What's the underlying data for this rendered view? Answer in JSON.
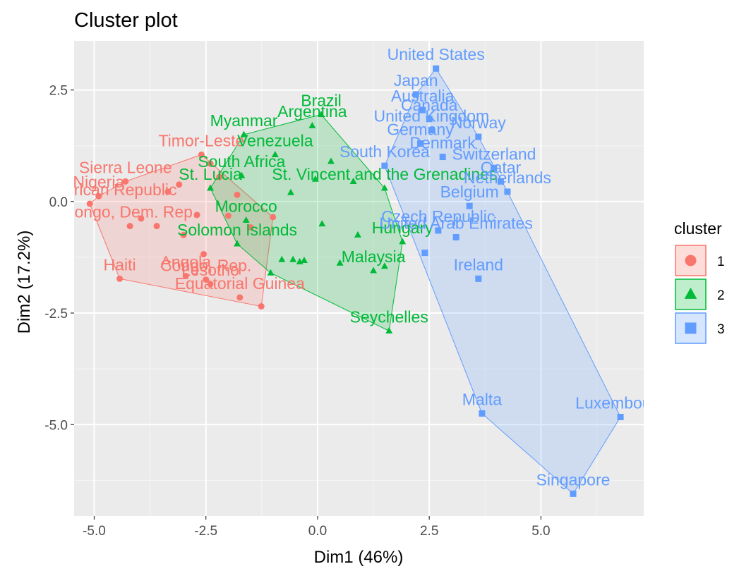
{
  "chart_data": {
    "type": "scatter",
    "title": "Cluster plot",
    "xlabel": "Dim1 (46%)",
    "ylabel": "Dim2 (17.2%)",
    "xlim": [
      -5.45,
      7.3
    ],
    "ylim": [
      -7.05,
      3.6
    ],
    "xticks": [
      -5.0,
      -2.5,
      0.0,
      2.5,
      5.0
    ],
    "xtick_labels": [
      "-5.0",
      "-2.5",
      "0.0",
      "2.5",
      "5.0"
    ],
    "yticks": [
      2.5,
      0.0,
      -2.5,
      -5.0
    ],
    "ytick_labels": [
      "2.5",
      "0.0",
      "-2.5",
      "-5.0"
    ],
    "grid": true,
    "legend": {
      "title": "cluster",
      "position": "right",
      "entries": [
        {
          "label": "1",
          "color": "#F8766D",
          "shape": "circle"
        },
        {
          "label": "2",
          "color": "#00BA38",
          "shape": "triangle"
        },
        {
          "label": "3",
          "color": "#619CFF",
          "shape": "square"
        }
      ]
    },
    "series": [
      {
        "cluster": "1",
        "color": "#F8766D",
        "shape": "circle",
        "points": [
          {
            "label": "Haiti",
            "x": -4.43,
            "y": -1.73
          },
          {
            "label": "Angola",
            "x": -2.95,
            "y": -1.67
          },
          {
            "label": "Lesotho",
            "x": -2.4,
            "y": -1.85
          },
          {
            "label": "Congo, Rep.",
            "x": -2.5,
            "y": -1.75
          },
          {
            "label": "Equatorial Guinea",
            "x": -1.74,
            "y": -2.15
          },
          {
            "label": "",
            "x": -1.26,
            "y": -2.35
          },
          {
            "label": "Nigeria",
            "x": -4.9,
            "y": 0.12
          },
          {
            "label": "Central African Republic",
            "x": -5.1,
            "y": -0.05
          },
          {
            "label": "Congo, Dem. Rep.",
            "x": -4.2,
            "y": -0.55
          },
          {
            "label": "Sierra Leone",
            "x": -4.3,
            "y": 0.45
          },
          {
            "label": "Timor-Leste",
            "x": -2.6,
            "y": 1.05
          },
          {
            "label": "",
            "x": -3.95,
            "y": -0.38
          },
          {
            "label": "",
            "x": -3.6,
            "y": -0.55
          },
          {
            "label": "",
            "x": -3.0,
            "y": -0.75
          },
          {
            "label": "",
            "x": -2.55,
            "y": -1.18
          },
          {
            "label": "",
            "x": -3.35,
            "y": 0.22
          },
          {
            "label": "",
            "x": -3.1,
            "y": 0.38
          },
          {
            "label": "",
            "x": -2.2,
            "y": 0.55
          },
          {
            "label": "",
            "x": -2.0,
            "y": -0.32
          },
          {
            "label": "",
            "x": -1.5,
            "y": -0.58
          },
          {
            "label": "",
            "x": -1.0,
            "y": -0.35
          },
          {
            "label": "",
            "x": -2.7,
            "y": -0.3
          },
          {
            "label": "",
            "x": -1.8,
            "y": 0.15
          },
          {
            "label": "",
            "x": -2.4,
            "y": 0.85
          }
        ]
      },
      {
        "cluster": "2",
        "color": "#00BA38",
        "shape": "triangle",
        "points": [
          {
            "label": "Brazil",
            "x": 0.08,
            "y": 1.95
          },
          {
            "label": "Myanmar",
            "x": -1.65,
            "y": 1.5
          },
          {
            "label": "Argentina",
            "x": -0.12,
            "y": 1.7
          },
          {
            "label": "Venezuela",
            "x": -0.95,
            "y": 1.05
          },
          {
            "label": "South Africa",
            "x": -1.7,
            "y": 0.58
          },
          {
            "label": "St. Lucia",
            "x": -2.4,
            "y": 0.3
          },
          {
            "label": "Morocco",
            "x": -1.6,
            "y": -0.42
          },
          {
            "label": "Solomon Islands",
            "x": -1.8,
            "y": -0.95
          },
          {
            "label": "Malaysia",
            "x": 1.25,
            "y": -1.55
          },
          {
            "label": "Seychelles",
            "x": 1.6,
            "y": -2.9
          },
          {
            "label": "Hungary",
            "x": 1.9,
            "y": -0.9
          },
          {
            "label": "St. Vincent and the Grenadines",
            "x": 1.5,
            "y": 0.3
          },
          {
            "label": "",
            "x": -0.8,
            "y": -1.3
          },
          {
            "label": "",
            "x": -0.55,
            "y": -1.3
          },
          {
            "label": "",
            "x": -0.4,
            "y": -1.35
          },
          {
            "label": "",
            "x": -0.3,
            "y": -1.32
          },
          {
            "label": "",
            "x": 0.5,
            "y": -1.38
          },
          {
            "label": "",
            "x": 1.5,
            "y": -1.45
          },
          {
            "label": "",
            "x": -1.05,
            "y": -1.6
          },
          {
            "label": "",
            "x": -0.05,
            "y": 0.5
          },
          {
            "label": "",
            "x": 0.3,
            "y": 0.9
          },
          {
            "label": "",
            "x": 0.8,
            "y": 0.45
          },
          {
            "label": "",
            "x": -0.6,
            "y": 0.2
          },
          {
            "label": "",
            "x": 0.1,
            "y": -0.5
          },
          {
            "label": "",
            "x": 0.9,
            "y": -0.75
          }
        ]
      },
      {
        "cluster": "3",
        "color": "#619CFF",
        "shape": "square",
        "points": [
          {
            "label": "United States",
            "x": 2.65,
            "y": 2.98
          },
          {
            "label": "Japan",
            "x": 2.2,
            "y": 2.4
          },
          {
            "label": "Australia",
            "x": 2.35,
            "y": 2.05
          },
          {
            "label": "Canada",
            "x": 2.5,
            "y": 1.85
          },
          {
            "label": "United Kingdom",
            "x": 2.55,
            "y": 1.6
          },
          {
            "label": "Norway",
            "x": 3.6,
            "y": 1.45
          },
          {
            "label": "Germany",
            "x": 2.3,
            "y": 1.3
          },
          {
            "label": "Denmark",
            "x": 2.8,
            "y": 1.0
          },
          {
            "label": "Switzerland",
            "x": 3.95,
            "y": 0.75
          },
          {
            "label": "Qatar",
            "x": 4.1,
            "y": 0.45
          },
          {
            "label": "Netherlands",
            "x": 4.25,
            "y": 0.22
          },
          {
            "label": "Belgium",
            "x": 3.4,
            "y": -0.1
          },
          {
            "label": "Czech Republic",
            "x": 2.7,
            "y": -0.65
          },
          {
            "label": "United Arab Emirates",
            "x": 3.1,
            "y": -0.8
          },
          {
            "label": "South Korea",
            "x": 1.5,
            "y": 0.8
          },
          {
            "label": "Ireland",
            "x": 3.6,
            "y": -1.73
          },
          {
            "label": "Malta",
            "x": 3.68,
            "y": -4.75
          },
          {
            "label": "Luxembourg",
            "x": 6.78,
            "y": -4.83
          },
          {
            "label": "Singapore",
            "x": 5.72,
            "y": -6.55
          },
          {
            "label": "",
            "x": 2.4,
            "y": -1.15
          }
        ]
      }
    ]
  }
}
